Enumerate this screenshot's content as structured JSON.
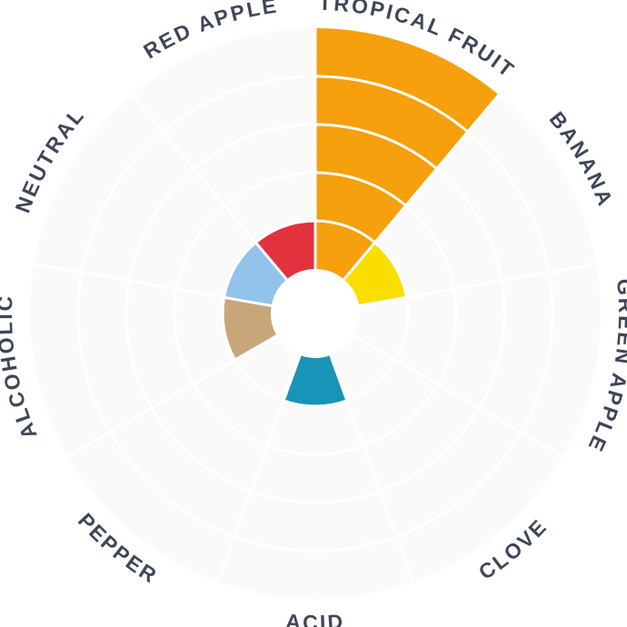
{
  "chart_data": {
    "type": "polar-area",
    "categories": [
      "TROPICAL FRUIT",
      "BANANA",
      "GREEN APPLE",
      "CLOVE",
      "ACID",
      "PEPPER",
      "ALCOHOLIC",
      "NEUTRAL",
      "RED APPLE"
    ],
    "values": [
      5,
      1,
      0,
      0,
      1,
      0,
      1,
      1,
      1
    ],
    "rlim": [
      0,
      5
    ],
    "colors": [
      "#f5a00c",
      "#fade00",
      "#f5a00c",
      "#f5a00c",
      "#1a93b8",
      "#f5a00c",
      "#c7a77a",
      "#92c3ea",
      "#e2323e"
    ],
    "background_color": "#fafafa",
    "grid": true
  }
}
